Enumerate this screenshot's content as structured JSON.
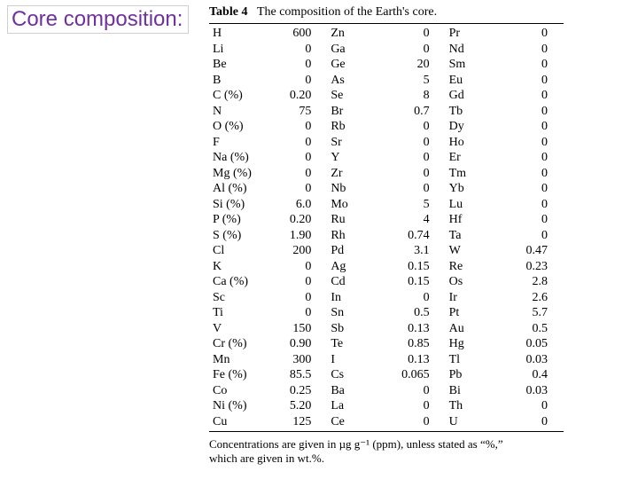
{
  "slide": {
    "title": "Core composition:",
    "title_color": "#7030a0"
  },
  "table": {
    "caption_label": "Table 4",
    "caption_text": "The composition of the Earth's core.",
    "footnote_line1": "Concentrations are given in µg g⁻¹ (ppm), unless stated as “%,”",
    "footnote_line2": "which are given in wt.%.",
    "columns": [
      {
        "items": [
          {
            "el": "H",
            "val": "600"
          },
          {
            "el": "Li",
            "val": "0"
          },
          {
            "el": "Be",
            "val": "0"
          },
          {
            "el": "B",
            "val": "0"
          },
          {
            "el": "C (%)",
            "val": "0.20"
          },
          {
            "el": "N",
            "val": "75"
          },
          {
            "el": "O (%)",
            "val": "0"
          },
          {
            "el": "F",
            "val": "0"
          },
          {
            "el": "Na (%)",
            "val": "0"
          },
          {
            "el": "Mg (%)",
            "val": "0"
          },
          {
            "el": "Al (%)",
            "val": "0"
          },
          {
            "el": "Si (%)",
            "val": "6.0"
          },
          {
            "el": "P (%)",
            "val": "0.20"
          },
          {
            "el": "S (%)",
            "val": "1.90"
          },
          {
            "el": "Cl",
            "val": "200"
          },
          {
            "el": "K",
            "val": "0"
          },
          {
            "el": "Ca (%)",
            "val": "0"
          },
          {
            "el": "Sc",
            "val": "0"
          },
          {
            "el": "Ti",
            "val": "0"
          },
          {
            "el": "V",
            "val": "150"
          },
          {
            "el": "Cr (%)",
            "val": "0.90"
          },
          {
            "el": "Mn",
            "val": "300"
          },
          {
            "el": "Fe (%)",
            "val": "85.5"
          },
          {
            "el": "Co",
            "val": "0.25"
          },
          {
            "el": "Ni (%)",
            "val": "5.20"
          },
          {
            "el": "Cu",
            "val": "125"
          }
        ]
      },
      {
        "items": [
          {
            "el": "Zn",
            "val": "0"
          },
          {
            "el": "Ga",
            "val": "0"
          },
          {
            "el": "Ge",
            "val": "20"
          },
          {
            "el": "As",
            "val": "5"
          },
          {
            "el": "Se",
            "val": "8"
          },
          {
            "el": "Br",
            "val": "0.7"
          },
          {
            "el": "Rb",
            "val": "0"
          },
          {
            "el": "Sr",
            "val": "0"
          },
          {
            "el": "Y",
            "val": "0"
          },
          {
            "el": "Zr",
            "val": "0"
          },
          {
            "el": "Nb",
            "val": "0"
          },
          {
            "el": "Mo",
            "val": "5"
          },
          {
            "el": "Ru",
            "val": "4"
          },
          {
            "el": "Rh",
            "val": "0.74"
          },
          {
            "el": "Pd",
            "val": "3.1"
          },
          {
            "el": "Ag",
            "val": "0.15"
          },
          {
            "el": "Cd",
            "val": "0.15"
          },
          {
            "el": "In",
            "val": "0"
          },
          {
            "el": "Sn",
            "val": "0.5"
          },
          {
            "el": "Sb",
            "val": "0.13"
          },
          {
            "el": "Te",
            "val": "0.85"
          },
          {
            "el": "I",
            "val": "0.13"
          },
          {
            "el": "Cs",
            "val": "0.065"
          },
          {
            "el": "Ba",
            "val": "0"
          },
          {
            "el": "La",
            "val": "0"
          },
          {
            "el": "Ce",
            "val": "0"
          }
        ]
      },
      {
        "items": [
          {
            "el": "Pr",
            "val": "0"
          },
          {
            "el": "Nd",
            "val": "0"
          },
          {
            "el": "Sm",
            "val": "0"
          },
          {
            "el": "Eu",
            "val": "0"
          },
          {
            "el": "Gd",
            "val": "0"
          },
          {
            "el": "Tb",
            "val": "0"
          },
          {
            "el": "Dy",
            "val": "0"
          },
          {
            "el": "Ho",
            "val": "0"
          },
          {
            "el": "Er",
            "val": "0"
          },
          {
            "el": "Tm",
            "val": "0"
          },
          {
            "el": "Yb",
            "val": "0"
          },
          {
            "el": "Lu",
            "val": "0"
          },
          {
            "el": "Hf",
            "val": "0"
          },
          {
            "el": "Ta",
            "val": "0"
          },
          {
            "el": "W",
            "val": "0.47"
          },
          {
            "el": "Re",
            "val": "0.23"
          },
          {
            "el": "Os",
            "val": "2.8"
          },
          {
            "el": "Ir",
            "val": "2.6"
          },
          {
            "el": "Pt",
            "val": "5.7"
          },
          {
            "el": "Au",
            "val": "0.5"
          },
          {
            "el": "Hg",
            "val": "0.05"
          },
          {
            "el": "Tl",
            "val": "0.03"
          },
          {
            "el": "Pb",
            "val": "0.4"
          },
          {
            "el": "Bi",
            "val": "0.03"
          },
          {
            "el": "Th",
            "val": "0"
          },
          {
            "el": "U",
            "val": "0"
          }
        ]
      }
    ]
  }
}
